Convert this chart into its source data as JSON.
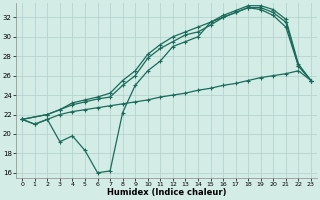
{
  "xlabel": "Humidex (Indice chaleur)",
  "ylabel": "",
  "xlim": [
    -0.5,
    23.5
  ],
  "ylim": [
    15.5,
    33.5
  ],
  "xticks": [
    0,
    1,
    2,
    3,
    4,
    5,
    6,
    7,
    8,
    9,
    10,
    11,
    12,
    13,
    14,
    15,
    16,
    17,
    18,
    19,
    20,
    21,
    22,
    23
  ],
  "yticks": [
    16,
    18,
    20,
    22,
    24,
    26,
    28,
    30,
    32
  ],
  "bg_color": "#d4ece6",
  "grid_color": "#b0cfc8",
  "line_color": "#1a6b5a",
  "line_diagonal_x": [
    0,
    1,
    2,
    3,
    4,
    5,
    6,
    7,
    8,
    9,
    10,
    11,
    12,
    13,
    14,
    15,
    16,
    17,
    18,
    19,
    20,
    21,
    22,
    23
  ],
  "line_diagonal_y": [
    21.5,
    21.0,
    21.5,
    22.0,
    22.3,
    22.5,
    22.7,
    22.9,
    23.1,
    23.3,
    23.5,
    23.8,
    24.0,
    24.2,
    24.5,
    24.7,
    25.0,
    25.2,
    25.5,
    25.8,
    26.0,
    26.2,
    26.5,
    25.5
  ],
  "line_zigzag_x": [
    0,
    1,
    2,
    3,
    4,
    5,
    6,
    7,
    8,
    9,
    10,
    11,
    12,
    13,
    14,
    15,
    16,
    17,
    18,
    19,
    20,
    21,
    22,
    23
  ],
  "line_zigzag_y": [
    21.5,
    21.0,
    21.5,
    19.2,
    19.8,
    18.3,
    16.0,
    16.2,
    22.2,
    25.0,
    26.5,
    27.5,
    29.0,
    29.5,
    30.0,
    31.5,
    32.0,
    32.5,
    33.0,
    32.8,
    32.2,
    31.0,
    27.0,
    25.5
  ],
  "line_upper1_x": [
    0,
    2,
    3,
    4,
    5,
    6,
    7,
    8,
    9,
    10,
    11,
    12,
    13,
    14,
    15,
    16,
    17,
    18,
    19,
    20,
    21,
    22,
    23
  ],
  "line_upper1_y": [
    21.5,
    22.0,
    22.5,
    23.0,
    23.3,
    23.6,
    23.8,
    25.0,
    26.0,
    27.8,
    28.8,
    29.5,
    30.2,
    30.5,
    31.2,
    32.0,
    32.5,
    33.0,
    33.0,
    32.5,
    31.5,
    27.0,
    25.5
  ],
  "line_upper2_x": [
    0,
    2,
    3,
    4,
    5,
    6,
    7,
    8,
    9,
    10,
    11,
    12,
    13,
    14,
    15,
    16,
    17,
    18,
    19,
    20,
    21,
    22,
    23
  ],
  "line_upper2_y": [
    21.5,
    22.0,
    22.5,
    23.2,
    23.5,
    23.8,
    24.2,
    25.5,
    26.5,
    28.2,
    29.2,
    30.0,
    30.5,
    31.0,
    31.5,
    32.2,
    32.7,
    33.2,
    33.2,
    32.8,
    31.8,
    27.2,
    25.5
  ]
}
